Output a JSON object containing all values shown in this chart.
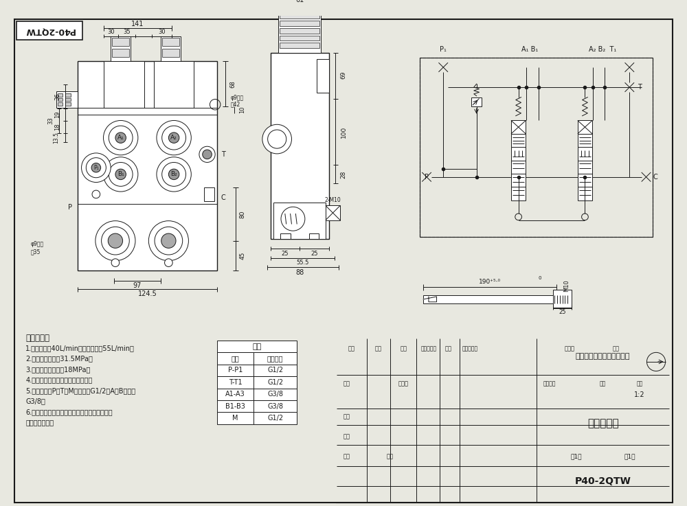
{
  "bg_color": "#e8e8e0",
  "line_color": "#1a1a1a",
  "title_box_text": "P40-2QTW",
  "tech_requirements": [
    "技术要求：",
    "1.额定流量：40L/min，最大流量：55L/min；",
    "2.最大工作压力：31.5MPa；",
    "3.安全阁调定压力：18MPa；",
    "4.各运动部分应灵活，无卡滯现象；",
    "5.油口尺寸：P、T、M油口均为G1/2；A、B油口为",
    "G3/8；",
    "6.阀体表面氧化处理，安全阁及螺素锁紧，支架",
    "后涂为铝本色。"
  ],
  "table_title": "阀体",
  "table_headers": [
    "接口",
    "螺紹规格"
  ],
  "table_rows": [
    [
      "P-P1",
      "G1/2"
    ],
    [
      "T-T1",
      "G1/2"
    ],
    [
      "A1-A3",
      "G3/8"
    ],
    [
      "B1-B3",
      "G3/8"
    ],
    [
      "M",
      "G1/2"
    ]
  ],
  "company_name": "山东奥骊液压科技有限公司",
  "drawing_title": "二联多路阁",
  "drawing_number": "P40-2QTW",
  "scale": "1:2",
  "sheet1": "共1张",
  "sheet2": "第1张"
}
